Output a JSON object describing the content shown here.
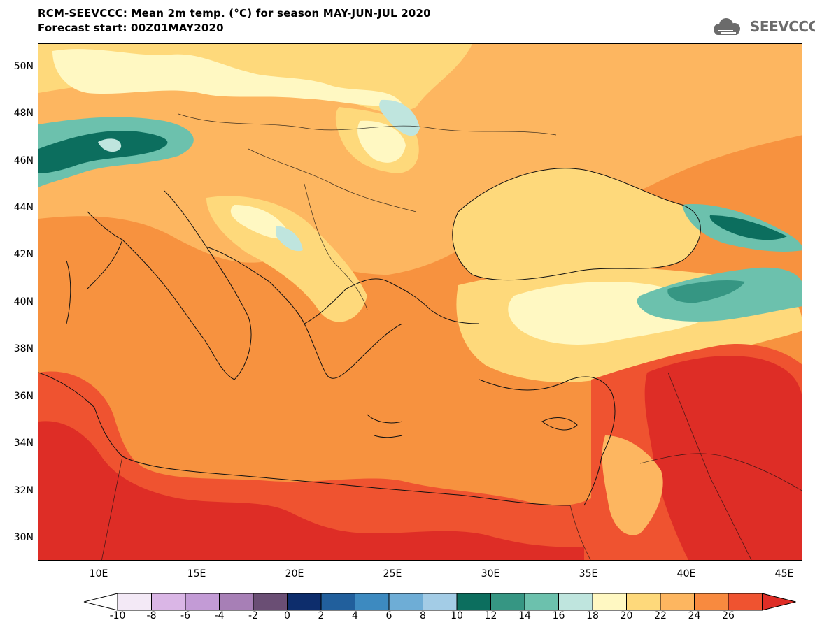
{
  "header": {
    "title_line1": "RCM-SEEVCCC: Mean 2m temp. (°C) for season MAY-JUN-JUL 2020",
    "title_line2": "Forecast start: 00Z01MAY2020",
    "logo_text": "SEEVCCC",
    "logo_icon": "cloud-icon"
  },
  "map": {
    "lat_labels": [
      "50N",
      "48N",
      "46N",
      "44N",
      "42N",
      "40N",
      "38N",
      "36N",
      "34N",
      "32N",
      "30N"
    ],
    "lon_labels": [
      "10E",
      "15E",
      "20E",
      "25E",
      "30E",
      "35E",
      "40E",
      "45E"
    ],
    "extent": {
      "lon_min": 7,
      "lon_max": 46,
      "lat_min": 29,
      "lat_max": 51
    }
  },
  "colorbar": {
    "labels": [
      "-10",
      "-8",
      "-6",
      "-4",
      "-2",
      "0",
      "2",
      "4",
      "6",
      "8",
      "10",
      "12",
      "14",
      "16",
      "18",
      "20",
      "22",
      "24",
      "26"
    ],
    "colors": [
      "#f3e9f6",
      "#dab6e6",
      "#c39bd6",
      "#a77fb6",
      "#6a4e74",
      "#0d2d6c",
      "#215f9c",
      "#3d8ac0",
      "#6eadd6",
      "#a3cce6",
      "#0c6e5e",
      "#369683",
      "#6cc1ad",
      "#bfe5de",
      "#fff8c2",
      "#fed97b",
      "#fdb660",
      "#f88a3f",
      "#ef5330"
    ],
    "min_color": "#ffffff",
    "max_color": "#de2d26"
  },
  "palette": {
    "sea_orange": "#f7923f",
    "land_orange": "#f88a3f",
    "light_orange": "#fdb660",
    "yellow": "#fed97b",
    "pale_yellow": "#fff8c2",
    "red": "#ef5330",
    "deep_red": "#de2d26",
    "teal": "#369683",
    "dark_teal": "#0c6e5e",
    "light_teal": "#6cc1ad",
    "pale_teal": "#bfe5de"
  }
}
